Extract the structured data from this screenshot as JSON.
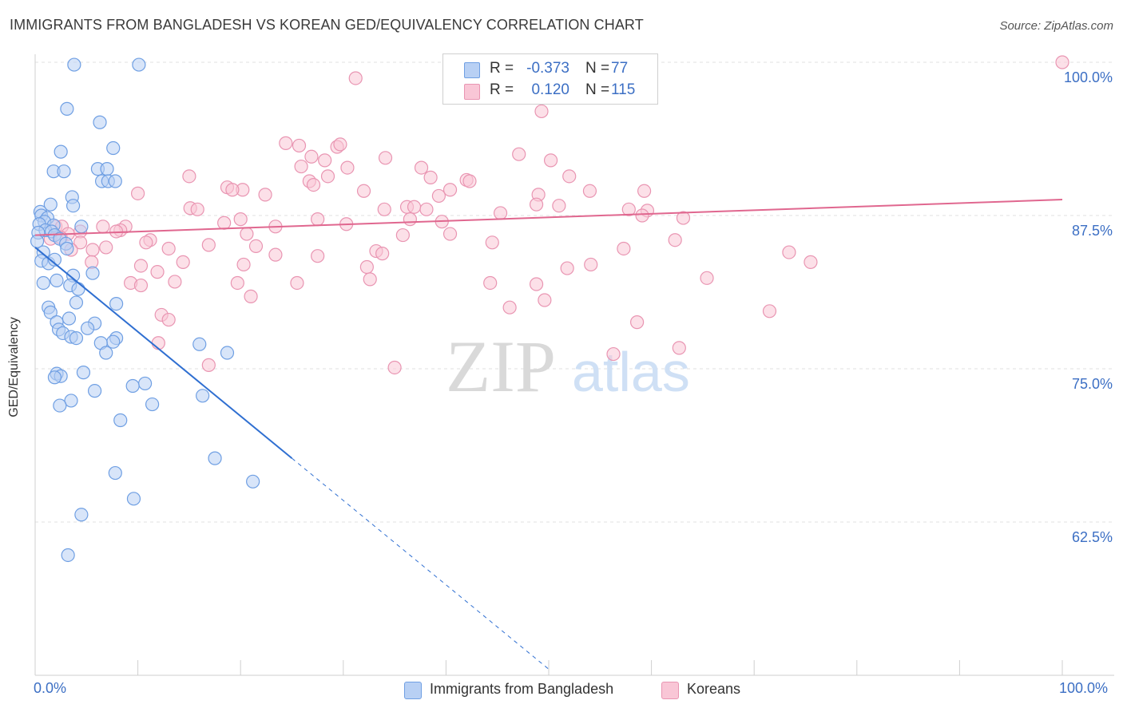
{
  "header": {
    "title": "IMMIGRANTS FROM BANGLADESH VS KOREAN GED/EQUIVALENCY CORRELATION CHART",
    "source": "Source: ZipAtlas.com"
  },
  "watermark": {
    "zip": "ZIP",
    "atlas": "atlas"
  },
  "legend": {
    "r_label": "R =",
    "n_label": "N =",
    "rows": [
      {
        "r": "-0.373",
        "n": "77",
        "fill": "#b8d0f4",
        "stroke": "#6f9fe3"
      },
      {
        "r": "0.120",
        "n": "115",
        "fill": "#f9c6d6",
        "stroke": "#e995b2"
      }
    ]
  },
  "bottom_legend": {
    "series1": "Immigrants from Bangladesh",
    "series2": "Koreans"
  },
  "colors": {
    "blue_fill": "#b8d0f4",
    "blue_stroke": "#6f9fe3",
    "blue_line": "#2f6fd1",
    "pink_fill": "#f9c6d6",
    "pink_stroke": "#e995b2",
    "pink_line": "#e0678f",
    "axis_text": "#3c6fc4",
    "grid": "#e2e2e2"
  },
  "chart_data": {
    "type": "scatter",
    "title": "IMMIGRANTS FROM BANGLADESH VS KOREAN GED/EQUIVALENCY CORRELATION CHART",
    "xlabel": "",
    "ylabel": "GED/Equivalency",
    "xlim": [
      0,
      100
    ],
    "ylim": [
      50,
      100
    ],
    "x_tick_labels": [
      "0.0%",
      "100.0%"
    ],
    "y_ticks": [
      62.5,
      75.0,
      87.5,
      100.0
    ],
    "y_tick_labels": [
      "62.5%",
      "75.0%",
      "87.5%",
      "100.0%"
    ],
    "grid": "horizontal dashed",
    "legend_position": "top-center",
    "series": [
      {
        "name": "Immigrants from Bangladesh",
        "R": -0.373,
        "N": 77,
        "trend": {
          "x0": 0.0,
          "y0": 84.9,
          "x1": 25.0,
          "y1": 67.7,
          "dashed_to_x": 50.0,
          "dashed_to_y": 50.5
        },
        "points": [
          [
            3.8,
            99.8
          ],
          [
            10.1,
            99.8
          ],
          [
            3.1,
            96.2
          ],
          [
            6.3,
            95.1
          ],
          [
            7.6,
            93.0
          ],
          [
            2.5,
            92.7
          ],
          [
            6.1,
            91.3
          ],
          [
            7.0,
            91.3
          ],
          [
            1.8,
            91.1
          ],
          [
            2.8,
            91.1
          ],
          [
            6.5,
            90.3
          ],
          [
            7.1,
            90.3
          ],
          [
            7.8,
            90.3
          ],
          [
            3.6,
            89.0
          ],
          [
            1.5,
            88.4
          ],
          [
            3.7,
            88.3
          ],
          [
            0.5,
            87.8
          ],
          [
            0.6,
            87.5
          ],
          [
            1.2,
            87.3
          ],
          [
            0.9,
            87.0
          ],
          [
            0.4,
            86.8
          ],
          [
            1.8,
            86.7
          ],
          [
            4.5,
            86.6
          ],
          [
            1.0,
            86.3
          ],
          [
            1.6,
            86.2
          ],
          [
            0.3,
            86.1
          ],
          [
            1.9,
            85.9
          ],
          [
            2.4,
            85.6
          ],
          [
            0.2,
            85.4
          ],
          [
            3.0,
            85.2
          ],
          [
            3.1,
            84.8
          ],
          [
            0.8,
            84.5
          ],
          [
            0.6,
            83.8
          ],
          [
            1.3,
            83.6
          ],
          [
            1.9,
            83.9
          ],
          [
            5.6,
            82.8
          ],
          [
            3.7,
            82.6
          ],
          [
            2.1,
            82.2
          ],
          [
            0.8,
            82.0
          ],
          [
            3.4,
            81.8
          ],
          [
            4.2,
            81.5
          ],
          [
            4.0,
            80.4
          ],
          [
            7.9,
            80.3
          ],
          [
            1.3,
            80.0
          ],
          [
            1.5,
            79.6
          ],
          [
            3.3,
            79.1
          ],
          [
            2.1,
            78.8
          ],
          [
            5.8,
            78.7
          ],
          [
            5.1,
            78.3
          ],
          [
            2.3,
            78.2
          ],
          [
            2.7,
            77.9
          ],
          [
            3.5,
            77.6
          ],
          [
            4.0,
            77.5
          ],
          [
            7.9,
            77.5
          ],
          [
            7.6,
            77.2
          ],
          [
            6.4,
            77.1
          ],
          [
            16.0,
            77.0
          ],
          [
            6.9,
            76.3
          ],
          [
            18.7,
            76.3
          ],
          [
            2.1,
            74.6
          ],
          [
            4.7,
            74.7
          ],
          [
            2.5,
            74.4
          ],
          [
            1.9,
            74.3
          ],
          [
            10.7,
            73.8
          ],
          [
            9.5,
            73.6
          ],
          [
            5.8,
            73.2
          ],
          [
            16.3,
            72.8
          ],
          [
            3.5,
            72.4
          ],
          [
            11.4,
            72.1
          ],
          [
            2.4,
            72.0
          ],
          [
            8.3,
            70.8
          ],
          [
            17.5,
            67.7
          ],
          [
            7.8,
            66.5
          ],
          [
            21.2,
            65.8
          ],
          [
            9.6,
            64.4
          ],
          [
            4.5,
            63.1
          ],
          [
            3.2,
            59.8
          ]
        ]
      },
      {
        "name": "Koreans",
        "R": 0.12,
        "N": 115,
        "trend": {
          "x0": 0.0,
          "y0": 85.9,
          "x1": 100.0,
          "y1": 88.8
        },
        "points": [
          [
            41.0,
            100.0
          ],
          [
            100.0,
            100.0
          ],
          [
            31.2,
            98.7
          ],
          [
            49.3,
            96.0
          ],
          [
            24.4,
            93.4
          ],
          [
            25.7,
            93.2
          ],
          [
            29.4,
            93.1
          ],
          [
            29.7,
            93.3
          ],
          [
            47.1,
            92.5
          ],
          [
            34.1,
            92.2
          ],
          [
            26.9,
            92.3
          ],
          [
            28.2,
            92.0
          ],
          [
            50.2,
            92.0
          ],
          [
            37.6,
            91.4
          ],
          [
            30.4,
            91.4
          ],
          [
            25.9,
            91.5
          ],
          [
            15.0,
            90.7
          ],
          [
            28.5,
            90.7
          ],
          [
            52.0,
            90.7
          ],
          [
            38.5,
            90.6
          ],
          [
            42.0,
            90.4
          ],
          [
            42.3,
            90.3
          ],
          [
            26.7,
            90.3
          ],
          [
            27.1,
            90.0
          ],
          [
            18.7,
            89.8
          ],
          [
            20.2,
            89.6
          ],
          [
            19.2,
            89.6
          ],
          [
            40.4,
            89.6
          ],
          [
            32.0,
            89.5
          ],
          [
            54.0,
            89.5
          ],
          [
            59.3,
            89.5
          ],
          [
            10.0,
            89.3
          ],
          [
            22.4,
            89.2
          ],
          [
            39.3,
            89.1
          ],
          [
            49.0,
            89.2
          ],
          [
            48.8,
            88.4
          ],
          [
            36.2,
            88.2
          ],
          [
            36.9,
            88.2
          ],
          [
            51.0,
            88.3
          ],
          [
            38.1,
            88.0
          ],
          [
            34.0,
            88.0
          ],
          [
            15.1,
            88.1
          ],
          [
            15.8,
            88.0
          ],
          [
            57.8,
            88.0
          ],
          [
            59.6,
            87.9
          ],
          [
            45.3,
            87.7
          ],
          [
            59.1,
            87.5
          ],
          [
            63.1,
            87.3
          ],
          [
            20.0,
            87.2
          ],
          [
            27.5,
            87.2
          ],
          [
            36.5,
            87.2
          ],
          [
            39.6,
            87.0
          ],
          [
            18.4,
            86.9
          ],
          [
            30.3,
            86.8
          ],
          [
            23.4,
            86.6
          ],
          [
            2.0,
            86.6
          ],
          [
            2.6,
            86.6
          ],
          [
            6.6,
            86.6
          ],
          [
            8.8,
            86.6
          ],
          [
            8.3,
            86.3
          ],
          [
            7.9,
            86.2
          ],
          [
            4.4,
            86.2
          ],
          [
            20.6,
            86.0
          ],
          [
            3.2,
            86.0
          ],
          [
            40.4,
            86.0
          ],
          [
            35.8,
            85.9
          ],
          [
            1.5,
            85.6
          ],
          [
            2.5,
            85.7
          ],
          [
            11.2,
            85.5
          ],
          [
            10.8,
            85.3
          ],
          [
            4.4,
            85.3
          ],
          [
            16.9,
            85.1
          ],
          [
            62.3,
            85.5
          ],
          [
            44.5,
            85.3
          ],
          [
            21.5,
            85.0
          ],
          [
            6.9,
            84.9
          ],
          [
            13.0,
            84.8
          ],
          [
            57.3,
            84.8
          ],
          [
            3.5,
            84.7
          ],
          [
            33.2,
            84.6
          ],
          [
            5.6,
            84.7
          ],
          [
            33.8,
            84.4
          ],
          [
            23.4,
            84.3
          ],
          [
            27.5,
            84.2
          ],
          [
            73.4,
            84.5
          ],
          [
            75.5,
            83.7
          ],
          [
            5.5,
            83.7
          ],
          [
            14.4,
            83.7
          ],
          [
            10.3,
            83.4
          ],
          [
            20.3,
            83.5
          ],
          [
            32.3,
            83.3
          ],
          [
            51.8,
            83.2
          ],
          [
            54.1,
            83.5
          ],
          [
            11.9,
            82.9
          ],
          [
            13.6,
            82.1
          ],
          [
            9.3,
            82.0
          ],
          [
            19.7,
            82.0
          ],
          [
            25.5,
            82.0
          ],
          [
            32.6,
            82.3
          ],
          [
            65.4,
            82.4
          ],
          [
            46.2,
            80.0
          ],
          [
            71.5,
            79.7
          ],
          [
            12.3,
            79.4
          ],
          [
            49.6,
            80.6
          ],
          [
            58.6,
            78.8
          ],
          [
            12.0,
            77.1
          ],
          [
            62.7,
            76.7
          ],
          [
            56.3,
            76.2
          ],
          [
            16.9,
            75.3
          ],
          [
            35.0,
            75.1
          ],
          [
            10.3,
            81.8
          ],
          [
            48.8,
            81.9
          ],
          [
            44.3,
            82.0
          ],
          [
            21.0,
            80.9
          ],
          [
            13.0,
            79.0
          ]
        ]
      }
    ]
  }
}
